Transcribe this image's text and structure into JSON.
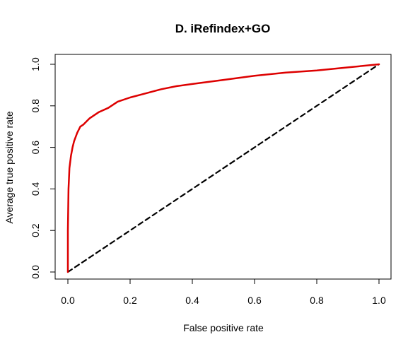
{
  "chart_data": {
    "type": "line",
    "title": "D. iRefindex+GO",
    "xlabel": "False positive rate",
    "ylabel": "Average true positive rate",
    "xlim": [
      0.0,
      1.0
    ],
    "ylim": [
      0.0,
      1.0
    ],
    "xticks": [
      "0.0",
      "0.2",
      "0.4",
      "0.6",
      "0.8",
      "1.0"
    ],
    "yticks": [
      "0.0",
      "0.2",
      "0.4",
      "0.6",
      "0.8",
      "1.0"
    ],
    "grid": false,
    "legend": "none",
    "series": [
      {
        "color": "#dd0000",
        "line_style": "solid",
        "x": [
          0.0,
          0.0,
          0.002,
          0.005,
          0.01,
          0.015,
          0.02,
          0.03,
          0.04,
          0.05,
          0.07,
          0.1,
          0.13,
          0.16,
          0.2,
          0.25,
          0.3,
          0.35,
          0.4,
          0.5,
          0.6,
          0.7,
          0.8,
          0.9,
          1.0
        ],
        "y": [
          0.0,
          0.2,
          0.4,
          0.5,
          0.56,
          0.6,
          0.63,
          0.67,
          0.7,
          0.71,
          0.74,
          0.77,
          0.79,
          0.82,
          0.84,
          0.86,
          0.88,
          0.895,
          0.905,
          0.925,
          0.945,
          0.96,
          0.97,
          0.985,
          1.0
        ]
      },
      {
        "color": "#000000",
        "line_style": "dashed",
        "x": [
          0.0,
          1.0
        ],
        "y": [
          0.0,
          1.0
        ]
      }
    ]
  }
}
